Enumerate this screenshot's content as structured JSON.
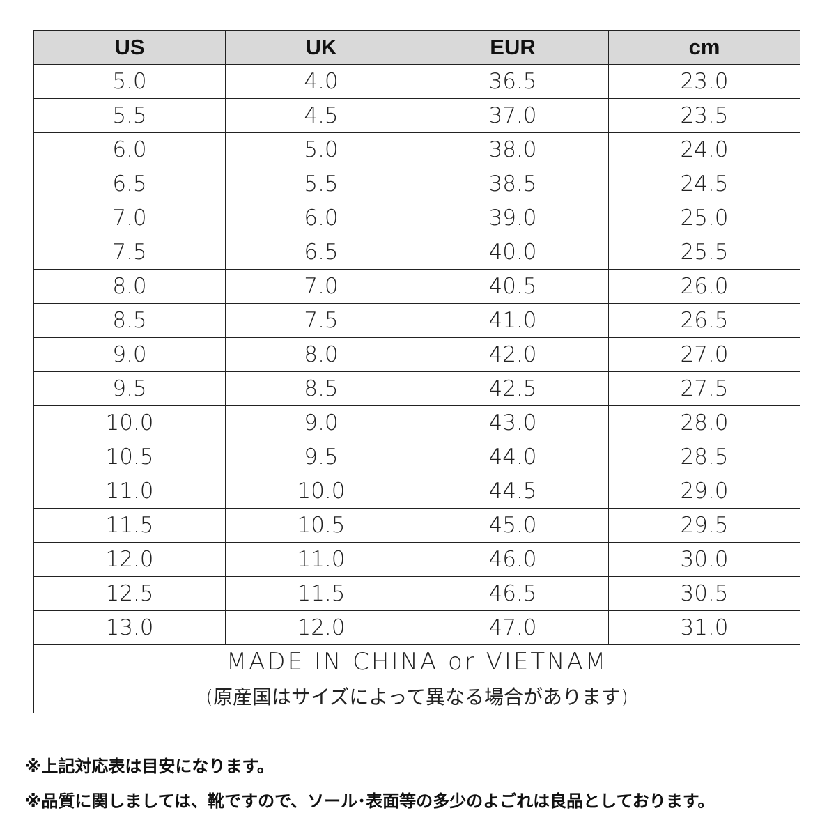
{
  "table": {
    "headers": [
      "US",
      "UK",
      "EUR",
      "cm"
    ],
    "rows": [
      [
        "5.0",
        "4.0",
        "36.5",
        "23.0"
      ],
      [
        "5.5",
        "4.5",
        "37.0",
        "23.5"
      ],
      [
        "6.0",
        "5.0",
        "38.0",
        "24.0"
      ],
      [
        "6.5",
        "5.5",
        "38.5",
        "24.5"
      ],
      [
        "7.0",
        "6.0",
        "39.0",
        "25.0"
      ],
      [
        "7.5",
        "6.5",
        "40.0",
        "25.5"
      ],
      [
        "8.0",
        "7.0",
        "40.5",
        "26.0"
      ],
      [
        "8.5",
        "7.5",
        "41.0",
        "26.5"
      ],
      [
        "9.0",
        "8.0",
        "42.0",
        "27.0"
      ],
      [
        "9.5",
        "8.5",
        "42.5",
        "27.5"
      ],
      [
        "10.0",
        "9.0",
        "43.0",
        "28.0"
      ],
      [
        "10.5",
        "9.5",
        "44.0",
        "28.5"
      ],
      [
        "11.0",
        "10.0",
        "44.5",
        "29.0"
      ],
      [
        "11.5",
        "10.5",
        "45.0",
        "29.5"
      ],
      [
        "12.0",
        "11.0",
        "46.0",
        "30.0"
      ],
      [
        "12.5",
        "11.5",
        "46.5",
        "30.5"
      ],
      [
        "13.0",
        "12.0",
        "47.0",
        "31.0"
      ]
    ],
    "made_in": "MADE IN CHINA or VIETNAM",
    "origin_note": "(原産国はサイズによって異なる場合があります)",
    "header_color": "#d9d9d9"
  },
  "footnotes": [
    "※上記対応表は目安になります。",
    "※品質に関しましては、靴ですので、ソール･表面等の多少のよごれは良品としております。"
  ]
}
